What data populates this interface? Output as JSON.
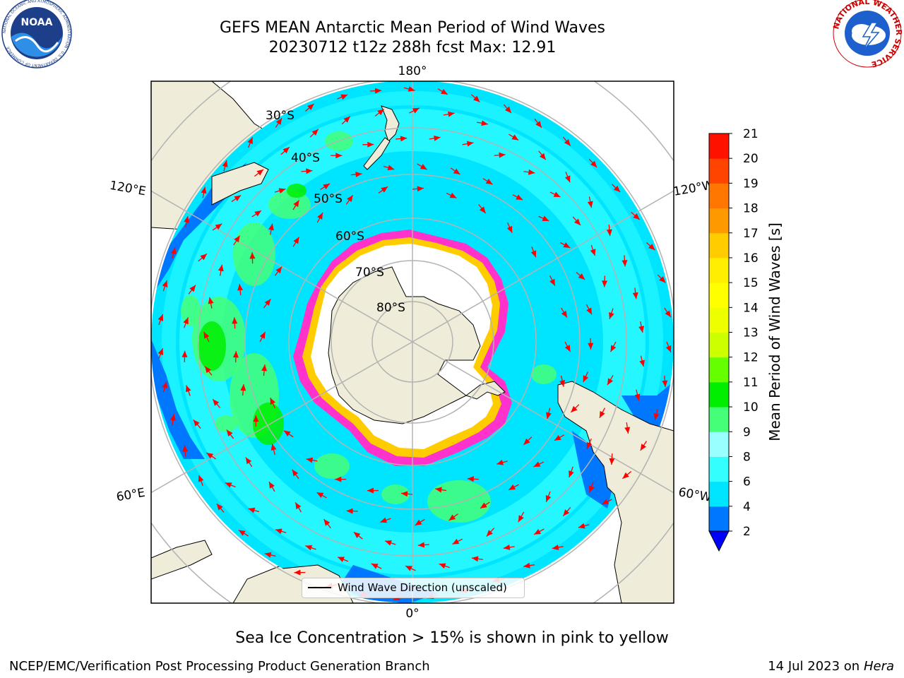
{
  "title": {
    "line1": "GEFS MEAN Antarctic Mean Period of Wind Waves",
    "line2": "20230712 t12z 288h fcst   Max: 12.91"
  },
  "logos": {
    "noaa_text": "NOAA",
    "noaa_ring": "NATIONAL OCEANIC AND ATMOSPHERIC ADMINISTRATION · U.S. DEPARTMENT OF COMMERCE",
    "nws_ring": "NATIONAL WEATHER SERVICE"
  },
  "map": {
    "projection": "south-polar-stereographic",
    "lon_labels": {
      "top": "180°",
      "bottom": "0°",
      "left_upper": "120°E",
      "left_lower": "60°E",
      "right_upper": "120°W",
      "right_lower": "60°W"
    },
    "lat_labels": [
      "30°S",
      "40°S",
      "50°S",
      "60°S",
      "70°S",
      "80°S"
    ],
    "legend": "Wind Wave Direction (unscaled)",
    "colors": {
      "land": "#efedd9",
      "ocean_bg": "#00e5ff",
      "sea_ice": "#ff33cc",
      "arrow": "#ff0000",
      "ice_shelf": "#ffffff"
    }
  },
  "colorbar": {
    "label": "Mean Period of Wind Waves [s]",
    "ticks": [
      "2",
      "4",
      "6",
      "8",
      "9",
      "10",
      "11",
      "12",
      "13",
      "14",
      "15",
      "16",
      "17",
      "18",
      "19",
      "20",
      "21"
    ],
    "colors": [
      "#0077ff",
      "#00e5ff",
      "#33ffff",
      "#99ffff",
      "#44ff77",
      "#00ee00",
      "#66ff00",
      "#ccff00",
      "#eeff00",
      "#ffff00",
      "#ffee00",
      "#ffcc00",
      "#ff9900",
      "#ff7700",
      "#ff4400",
      "#ff1100"
    ],
    "extend_color": "#0000ff"
  },
  "caption": "Sea Ice Concentration > 15% is shown in pink to yellow",
  "credit_left": "NCEP/EMC/Verification Post Processing Product Generation Branch",
  "credit_date": "14 Jul 2023 on ",
  "credit_machine": "Hera"
}
